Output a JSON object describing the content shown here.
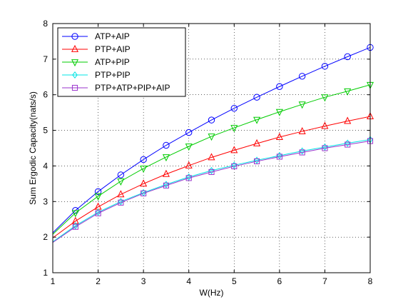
{
  "chart_data": {
    "type": "line",
    "xlabel": "W(Hz)",
    "ylabel": "Sum Ergodic Capacity(nats/s)",
    "xlim": [
      1,
      8
    ],
    "ylim": [
      1,
      8
    ],
    "xticks": [
      "1",
      "2",
      "3",
      "4",
      "5",
      "6",
      "7",
      "8"
    ],
    "yticks": [
      "1",
      "2",
      "3",
      "4",
      "5",
      "6",
      "7",
      "8"
    ],
    "grid": "dotted",
    "legend_position": "top-left",
    "x": [
      1,
      1.5,
      2,
      2.5,
      3,
      3.5,
      4,
      4.5,
      5,
      5.5,
      6,
      6.5,
      7,
      7.5,
      8
    ],
    "series": [
      {
        "name": "ATP+AIP",
        "color": "#0000ff",
        "marker": "circle",
        "values": [
          2.12,
          2.75,
          3.28,
          3.75,
          4.18,
          4.58,
          4.94,
          5.29,
          5.62,
          5.93,
          6.23,
          6.52,
          6.8,
          7.07,
          7.33
        ]
      },
      {
        "name": "PTP+AIP",
        "color": "#ff0000",
        "marker": "triangle-up",
        "values": [
          1.98,
          2.45,
          2.85,
          3.2,
          3.5,
          3.77,
          4.01,
          4.24,
          4.44,
          4.63,
          4.81,
          4.97,
          5.12,
          5.26,
          5.39
        ]
      },
      {
        "name": "ATP+PIP",
        "color": "#00cc00",
        "marker": "triangle-down",
        "values": [
          2.08,
          2.68,
          3.15,
          3.57,
          3.93,
          4.25,
          4.55,
          4.83,
          5.07,
          5.3,
          5.52,
          5.73,
          5.93,
          6.1,
          6.28
        ]
      },
      {
        "name": "PTP+PIP",
        "color": "#00e5e5",
        "marker": "diamond",
        "values": [
          1.87,
          2.32,
          2.7,
          3.0,
          3.25,
          3.48,
          3.69,
          3.87,
          4.02,
          4.16,
          4.29,
          4.42,
          4.53,
          4.64,
          4.74
        ]
      },
      {
        "name": "PTP+ATP+PIP+AIP",
        "color": "#9933cc",
        "marker": "square",
        "values": [
          1.85,
          2.29,
          2.67,
          2.97,
          3.23,
          3.45,
          3.66,
          3.83,
          3.99,
          4.13,
          4.26,
          4.38,
          4.5,
          4.6,
          4.7
        ]
      }
    ]
  }
}
